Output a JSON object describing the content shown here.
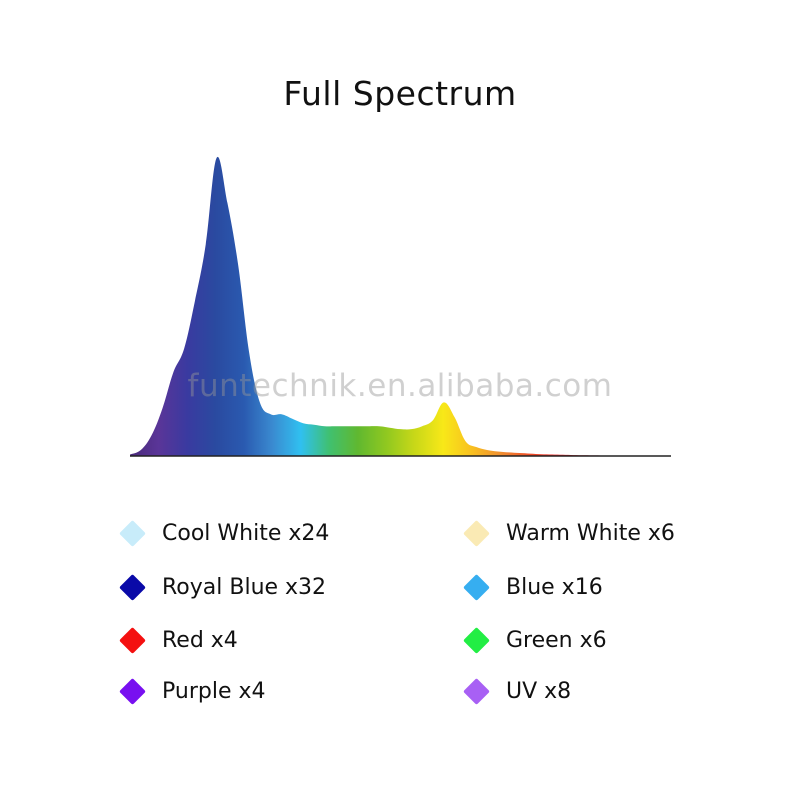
{
  "chart_data": {
    "type": "area",
    "title": "Full Spectrum",
    "xlabel": "",
    "ylabel": "",
    "grid": false,
    "axes_ticks": false,
    "x": [
      0,
      2,
      4,
      6,
      8,
      10,
      12,
      14,
      16,
      18,
      20,
      22,
      24,
      26,
      28,
      30,
      32,
      34,
      36,
      38,
      40,
      42,
      44,
      46,
      48,
      50,
      52,
      54,
      56,
      58,
      60,
      62,
      64,
      66,
      68,
      70,
      72,
      74,
      76,
      78,
      80,
      82,
      84,
      86,
      88,
      90,
      92,
      94,
      96,
      98,
      100
    ],
    "y": [
      0.5,
      2,
      7,
      16,
      28,
      36,
      52,
      71,
      100,
      85,
      64,
      35,
      18,
      14,
      14,
      12.5,
      11,
      10.5,
      10,
      10,
      10,
      10,
      10,
      10,
      9.5,
      9,
      9,
      10,
      12,
      18,
      13,
      5,
      3,
      2,
      1.5,
      1.2,
      1,
      0.8,
      0.6,
      0.5,
      0.4,
      0.3,
      0.25,
      0.2,
      0.15,
      0.1,
      0.1,
      0.05,
      0.05,
      0,
      0
    ],
    "ylim": [
      0,
      100
    ],
    "gradient_colors": [
      "#4a2a7a",
      "#5a3598",
      "#3a3aa0",
      "#2a4aa0",
      "#2a5ab0",
      "#3a8ad0",
      "#30c0f0",
      "#40c070",
      "#60b830",
      "#90c820",
      "#c8d818",
      "#f8e818",
      "#f8c020",
      "#f09030",
      "#f05028",
      "#e82020",
      "#c81020",
      "#a02030",
      "#702030",
      "#402030"
    ],
    "baseline_color": "#222222"
  },
  "watermark": "funtechnik.en.alibaba.com",
  "legend": {
    "items": [
      {
        "label": "Cool White x24",
        "color": "#c8ecfa"
      },
      {
        "label": "Warm White x6",
        "color": "#faeab4"
      },
      {
        "label": "Royal Blue x32",
        "color": "#0a0aa8"
      },
      {
        "label": "Blue x16",
        "color": "#36aef0"
      },
      {
        "label": "Red x4",
        "color": "#f41010"
      },
      {
        "label": "Green x6",
        "color": "#22ee44"
      },
      {
        "label": "Purple x4",
        "color": "#7810f0"
      },
      {
        "label": "UV x8",
        "color": "#a860f4"
      }
    ]
  }
}
